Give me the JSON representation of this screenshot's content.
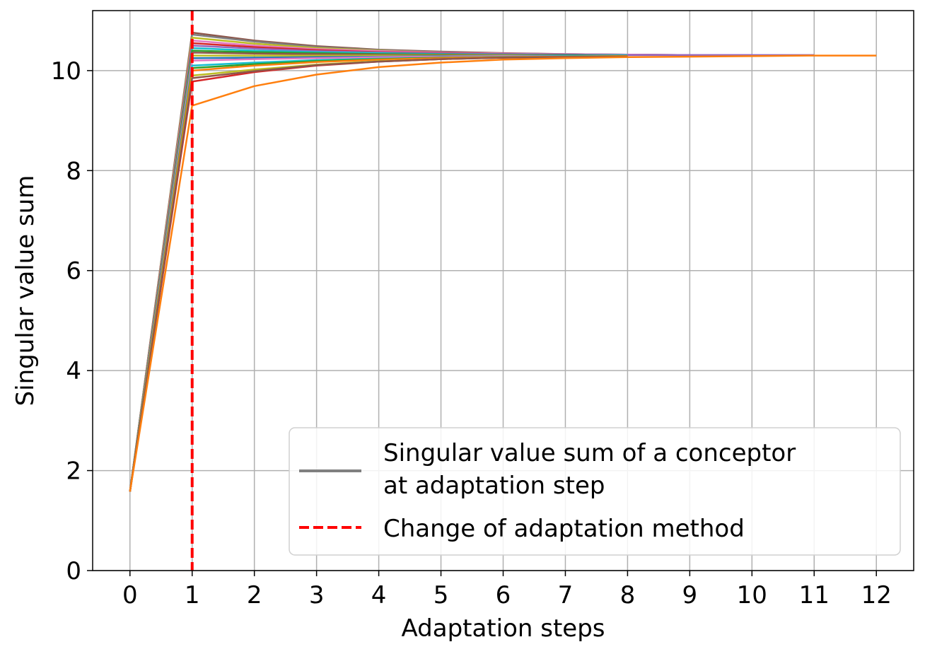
{
  "chart_data": {
    "type": "line",
    "xlabel": "Adaptation steps",
    "ylabel": "Singular value sum",
    "xlim": [
      -0.6,
      12.6
    ],
    "ylim": [
      0,
      11.2
    ],
    "xticks": [
      0,
      1,
      2,
      3,
      4,
      5,
      6,
      7,
      8,
      9,
      10,
      11,
      12
    ],
    "yticks": [
      0,
      2,
      4,
      6,
      8,
      10
    ],
    "grid": true,
    "legend_placement": "lower-right",
    "legend": [
      {
        "label_lines": [
          "Singular value sum of a conceptor",
          "at adaptation step"
        ],
        "color": "#808080",
        "style": "solid"
      },
      {
        "label_lines": [
          "Change of adaptation method"
        ],
        "color": "#ff0000",
        "style": "dashed"
      }
    ],
    "vline": {
      "x": 1,
      "color": "#ff0000",
      "style": "dashed"
    },
    "series": [
      {
        "color": "#8c564b",
        "x": [
          0,
          1,
          2,
          3,
          4,
          5,
          6,
          7,
          8,
          9
        ],
        "values": [
          1.58,
          10.76,
          10.6,
          10.49,
          10.42,
          10.38,
          10.35,
          10.33,
          10.32,
          10.31
        ]
      },
      {
        "color": "#7f7f7f",
        "x": [
          0,
          1,
          2,
          3,
          4,
          5,
          6,
          7,
          8,
          9
        ],
        "values": [
          1.58,
          10.72,
          10.58,
          10.47,
          10.41,
          10.37,
          10.34,
          10.33,
          10.32,
          10.31
        ]
      },
      {
        "color": "#bcbd22",
        "x": [
          0,
          1,
          2,
          3,
          4,
          5,
          6,
          7,
          8
        ],
        "values": [
          1.58,
          10.66,
          10.54,
          10.45,
          10.4,
          10.36,
          10.34,
          10.32,
          10.31
        ]
      },
      {
        "color": "#e377c2",
        "x": [
          0,
          1,
          2,
          3,
          4,
          5,
          6,
          7,
          8,
          9,
          10
        ],
        "values": [
          1.58,
          10.6,
          10.5,
          10.43,
          10.39,
          10.36,
          10.34,
          10.33,
          10.32,
          10.31,
          10.31
        ]
      },
      {
        "color": "#d62728",
        "x": [
          0,
          1,
          2,
          3,
          4,
          5,
          6,
          7,
          8
        ],
        "values": [
          1.58,
          10.55,
          10.47,
          10.41,
          10.37,
          10.35,
          10.33,
          10.32,
          10.31
        ]
      },
      {
        "color": "#9467bd",
        "x": [
          0,
          1,
          2,
          3,
          4,
          5,
          6,
          7,
          8,
          9,
          10,
          11
        ],
        "values": [
          1.58,
          10.5,
          10.44,
          10.39,
          10.36,
          10.34,
          10.33,
          10.32,
          10.31,
          10.31,
          10.31,
          10.31
        ]
      },
      {
        "color": "#17becf",
        "x": [
          0,
          1,
          2,
          3,
          4,
          5,
          6,
          7,
          8
        ],
        "values": [
          1.58,
          10.45,
          10.4,
          10.37,
          10.35,
          10.33,
          10.32,
          10.31,
          10.31
        ]
      },
      {
        "color": "#2ca02c",
        "x": [
          0,
          1,
          2,
          3,
          4,
          5,
          6,
          7,
          8
        ],
        "values": [
          1.58,
          10.4,
          10.37,
          10.35,
          10.33,
          10.32,
          10.31,
          10.31,
          10.3
        ]
      },
      {
        "color": "#8c564b",
        "x": [
          0,
          1,
          2,
          3,
          4,
          5,
          6,
          7,
          8
        ],
        "values": [
          1.58,
          10.36,
          10.34,
          10.33,
          10.32,
          10.31,
          10.31,
          10.3,
          10.3
        ]
      },
      {
        "color": "#bcbd22",
        "x": [
          0,
          1,
          2,
          3,
          4,
          5,
          6,
          7,
          8
        ],
        "values": [
          1.58,
          10.3,
          10.3,
          10.3,
          10.3,
          10.3,
          10.3,
          10.3,
          10.3
        ]
      },
      {
        "color": "#1f77b4",
        "x": [
          0,
          1,
          2,
          3,
          4,
          5,
          6,
          7,
          8
        ],
        "values": [
          1.58,
          10.25,
          10.26,
          10.27,
          10.28,
          10.29,
          10.29,
          10.3,
          10.3
        ]
      },
      {
        "color": "#e377c2",
        "x": [
          0,
          1,
          2,
          3,
          4,
          5,
          6,
          7,
          8
        ],
        "values": [
          1.58,
          10.2,
          10.23,
          10.25,
          10.27,
          10.28,
          10.29,
          10.29,
          10.3
        ]
      },
      {
        "color": "#17becf",
        "x": [
          0,
          1,
          2,
          3,
          4,
          5,
          6,
          7,
          8
        ],
        "values": [
          1.58,
          10.1,
          10.16,
          10.21,
          10.24,
          10.26,
          10.28,
          10.29,
          10.3
        ]
      },
      {
        "color": "#2ca02c",
        "x": [
          0,
          1,
          2,
          3,
          4,
          5,
          6,
          7,
          8
        ],
        "values": [
          1.58,
          10.05,
          10.13,
          10.19,
          10.23,
          10.26,
          10.27,
          10.28,
          10.29
        ]
      },
      {
        "color": "#ff7f0e",
        "x": [
          0,
          1,
          2,
          3,
          4,
          5,
          6,
          7,
          8
        ],
        "values": [
          1.58,
          10.0,
          10.1,
          10.17,
          10.22,
          10.25,
          10.27,
          10.28,
          10.29
        ]
      },
      {
        "color": "#bcbd22",
        "x": [
          0,
          1,
          2,
          3,
          4,
          5,
          6,
          7,
          8
        ],
        "values": [
          1.58,
          9.9,
          10.02,
          10.12,
          10.19,
          10.23,
          10.26,
          10.27,
          10.28
        ]
      },
      {
        "color": "#d62728",
        "x": [
          0,
          1,
          2,
          3,
          4,
          5,
          6,
          7,
          8
        ],
        "values": [
          1.58,
          9.78,
          9.97,
          10.1,
          10.18,
          10.23,
          10.26,
          10.27,
          10.28
        ]
      },
      {
        "color": "#8c564b",
        "x": [
          0,
          1,
          2,
          3,
          4,
          5,
          6,
          7,
          8
        ],
        "values": [
          1.58,
          9.85,
          9.99,
          10.11,
          10.18,
          10.23,
          10.26,
          10.27,
          10.28
        ]
      },
      {
        "color": "#ff7f0e",
        "x": [
          0,
          1,
          2,
          3,
          4,
          5,
          6,
          7,
          8,
          9,
          10,
          11,
          12
        ],
        "values": [
          1.58,
          9.3,
          9.69,
          9.92,
          10.07,
          10.16,
          10.22,
          10.25,
          10.27,
          10.28,
          10.29,
          10.3,
          10.3
        ]
      }
    ]
  }
}
